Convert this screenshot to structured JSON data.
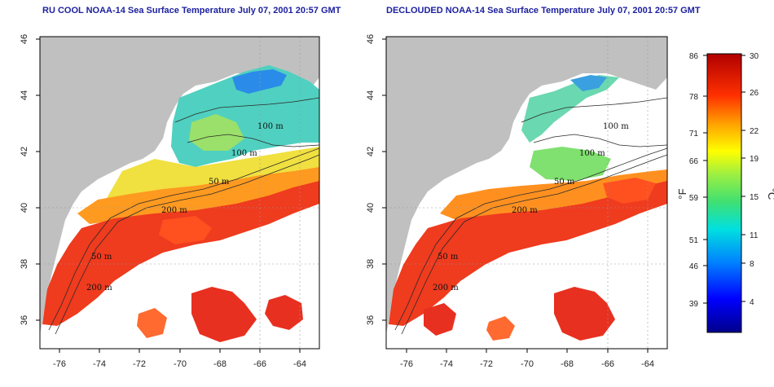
{
  "panels": [
    {
      "title": "RU COOL NOAA-14 Sea Surface Temperature July 07, 2001 20:57 GMT",
      "contours": [
        "100 m",
        "100 m",
        "50 m",
        "200 m",
        "50 m",
        "200 m"
      ]
    },
    {
      "title": "DECLOUDED NOAA-14 Sea Surface Temperature July 07, 2001 20:57 GMT",
      "contours": [
        "100 m",
        "100 m",
        "50 m",
        "200 m",
        "50 m",
        "200 m"
      ]
    }
  ],
  "axes": {
    "x_ticks": [
      "-76",
      "-74",
      "-72",
      "-70",
      "-68",
      "-66",
      "-64"
    ],
    "y_ticks": [
      "36",
      "38",
      "40",
      "42",
      "44",
      "46"
    ]
  },
  "colorbar": {
    "fahrenheit_label": "°F",
    "celsius_label": "°C",
    "fahrenheit_ticks": [
      "86",
      "78",
      "71",
      "66",
      "59",
      "51",
      "46",
      "39"
    ],
    "celsius_ticks": [
      "30",
      "26",
      "22",
      "19",
      "15",
      "11",
      "8",
      "4"
    ]
  },
  "colors": {
    "land": "#c0c0c0",
    "title": "#1b1f9e"
  }
}
